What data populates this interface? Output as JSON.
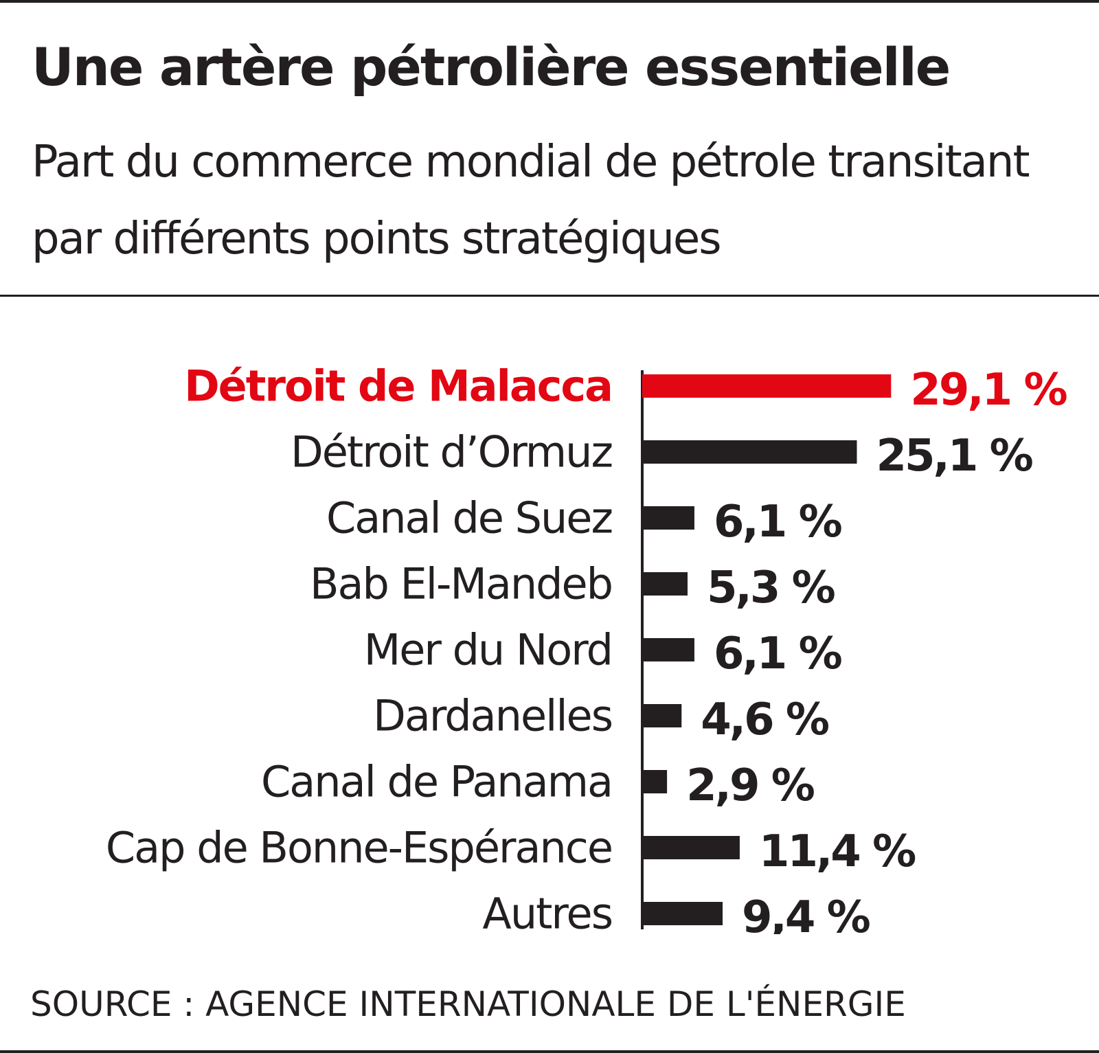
{
  "colors": {
    "ink": "#231f20",
    "highlight": "#e30613"
  },
  "header": {
    "title": "Une artère pétrolière essentielle",
    "subtitle": "Part du commerce mondial de pétrole transitant par différents points stratégiques"
  },
  "chart_data": {
    "type": "bar",
    "orientation": "horizontal",
    "categories": [
      "Détroit de Malacca",
      "Détroit d’Ormuz",
      "Canal de Suez",
      "Bab El-Mandeb",
      "Mer du Nord",
      "Dardanelles",
      "Canal de Panama",
      "Cap de Bonne-Espérance",
      "Autres"
    ],
    "values": [
      29.1,
      25.1,
      6.1,
      5.3,
      6.1,
      4.6,
      2.9,
      11.4,
      9.4
    ],
    "value_labels": [
      "29,1 %",
      "25,1 %",
      "6,1 %",
      "5,3 %",
      "6,1 %",
      "4,6 %",
      "2,9 %",
      "11,4 %",
      "9,4 %"
    ],
    "highlighted_category": "Détroit de Malacca",
    "unit": "%",
    "title": "Une artère pétrolière essentielle",
    "subtitle": "Part du commerce mondial de pétrole transitant par différents points stratégiques",
    "xlabel": "",
    "ylabel": "",
    "grid": false,
    "legend": "none"
  },
  "footer": {
    "source": "SOURCE : AGENCE INTERNATIONALE DE L'ÉNERGIE"
  }
}
